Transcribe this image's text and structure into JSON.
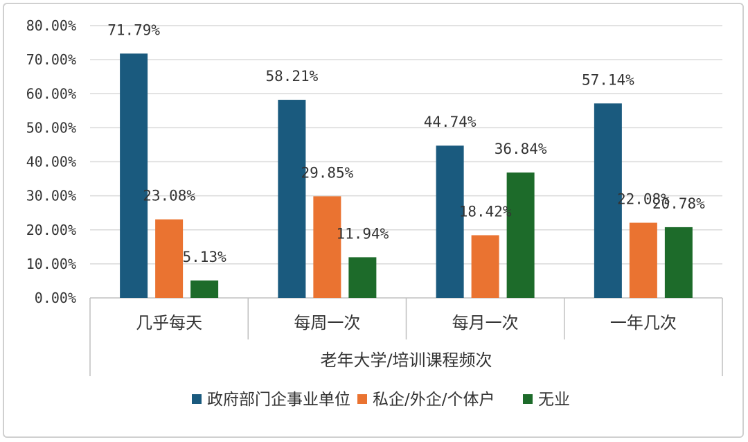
{
  "chart_data": {
    "type": "bar",
    "xlabel": "老年大学/培训课程频次",
    "categories": [
      "几乎每天",
      "每周一次",
      "每月一次",
      "一年几次"
    ],
    "series": [
      {
        "name": "政府部门企事业单位",
        "color": "#1a5a7e",
        "values": [
          71.79,
          58.21,
          44.74,
          57.14
        ],
        "labels": [
          "71.79%",
          "58.21%",
          "44.74%",
          "57.14%"
        ]
      },
      {
        "name": "私企/外企/个体户",
        "color": "#ea7331",
        "values": [
          23.08,
          29.85,
          18.42,
          22.08
        ],
        "labels": [
          "23.08%",
          "29.85%",
          "18.42%",
          "22.08%"
        ]
      },
      {
        "name": "无业",
        "color": "#1d6b2a",
        "values": [
          5.13,
          11.94,
          36.84,
          20.78
        ],
        "labels": [
          "5.13%",
          "11.94%",
          "36.84%",
          "20.78%"
        ]
      }
    ],
    "y_ticks": [
      "0.00%",
      "10.00%",
      "20.00%",
      "30.00%",
      "40.00%",
      "50.00%",
      "60.00%",
      "70.00%",
      "80.00%"
    ],
    "ylim": [
      0,
      80
    ],
    "grid": true,
    "legend_position": "bottom"
  }
}
